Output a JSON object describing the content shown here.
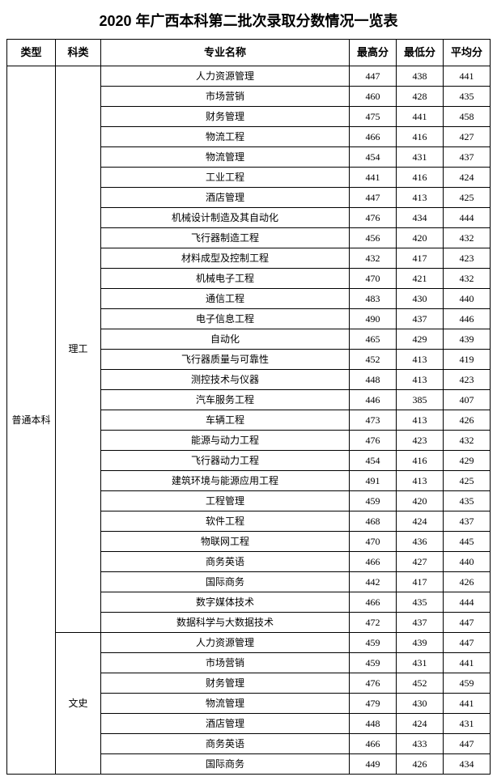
{
  "title": "2020 年广西本科第二批次录取分数情况一览表",
  "headers": {
    "type": "类型",
    "category": "科类",
    "major": "专业名称",
    "max": "最高分",
    "min": "最低分",
    "avg": "平均分"
  },
  "type_label": "普通本科",
  "groups": [
    {
      "category": "理工",
      "rows": [
        {
          "major": "人力资源管理",
          "max": 447,
          "min": 438,
          "avg": 441
        },
        {
          "major": "市场营销",
          "max": 460,
          "min": 428,
          "avg": 435
        },
        {
          "major": "财务管理",
          "max": 475,
          "min": 441,
          "avg": 458
        },
        {
          "major": "物流工程",
          "max": 466,
          "min": 416,
          "avg": 427
        },
        {
          "major": "物流管理",
          "max": 454,
          "min": 431,
          "avg": 437
        },
        {
          "major": "工业工程",
          "max": 441,
          "min": 416,
          "avg": 424
        },
        {
          "major": "酒店管理",
          "max": 447,
          "min": 413,
          "avg": 425
        },
        {
          "major": "机械设计制造及其自动化",
          "max": 476,
          "min": 434,
          "avg": 444
        },
        {
          "major": "飞行器制造工程",
          "max": 456,
          "min": 420,
          "avg": 432
        },
        {
          "major": "材料成型及控制工程",
          "max": 432,
          "min": 417,
          "avg": 423
        },
        {
          "major": "机械电子工程",
          "max": 470,
          "min": 421,
          "avg": 432
        },
        {
          "major": "通信工程",
          "max": 483,
          "min": 430,
          "avg": 440
        },
        {
          "major": "电子信息工程",
          "max": 490,
          "min": 437,
          "avg": 446
        },
        {
          "major": "自动化",
          "max": 465,
          "min": 429,
          "avg": 439
        },
        {
          "major": "飞行器质量与可靠性",
          "max": 452,
          "min": 413,
          "avg": 419
        },
        {
          "major": "测控技术与仪器",
          "max": 448,
          "min": 413,
          "avg": 423
        },
        {
          "major": "汽车服务工程",
          "max": 446,
          "min": 385,
          "avg": 407
        },
        {
          "major": "车辆工程",
          "max": 473,
          "min": 413,
          "avg": 426
        },
        {
          "major": "能源与动力工程",
          "max": 476,
          "min": 423,
          "avg": 432
        },
        {
          "major": "飞行器动力工程",
          "max": 454,
          "min": 416,
          "avg": 429
        },
        {
          "major": "建筑环境与能源应用工程",
          "max": 491,
          "min": 413,
          "avg": 425
        },
        {
          "major": "工程管理",
          "max": 459,
          "min": 420,
          "avg": 435
        },
        {
          "major": "软件工程",
          "max": 468,
          "min": 424,
          "avg": 437
        },
        {
          "major": "物联网工程",
          "max": 470,
          "min": 436,
          "avg": 445
        },
        {
          "major": "商务英语",
          "max": 466,
          "min": 427,
          "avg": 440
        },
        {
          "major": "国际商务",
          "max": 442,
          "min": 417,
          "avg": 426
        },
        {
          "major": "数字媒体技术",
          "max": 466,
          "min": 435,
          "avg": 444
        },
        {
          "major": "数据科学与大数据技术",
          "max": 472,
          "min": 437,
          "avg": 447
        }
      ]
    },
    {
      "category": "文史",
      "rows": [
        {
          "major": "人力资源管理",
          "max": 459,
          "min": 439,
          "avg": 447
        },
        {
          "major": "市场营销",
          "max": 459,
          "min": 431,
          "avg": 441
        },
        {
          "major": "财务管理",
          "max": 476,
          "min": 452,
          "avg": 459
        },
        {
          "major": "物流管理",
          "max": 479,
          "min": 430,
          "avg": 441
        },
        {
          "major": "酒店管理",
          "max": 448,
          "min": 424,
          "avg": 431
        },
        {
          "major": "商务英语",
          "max": 466,
          "min": 433,
          "avg": 447
        },
        {
          "major": "国际商务",
          "max": 449,
          "min": 426,
          "avg": 434
        }
      ]
    }
  ]
}
